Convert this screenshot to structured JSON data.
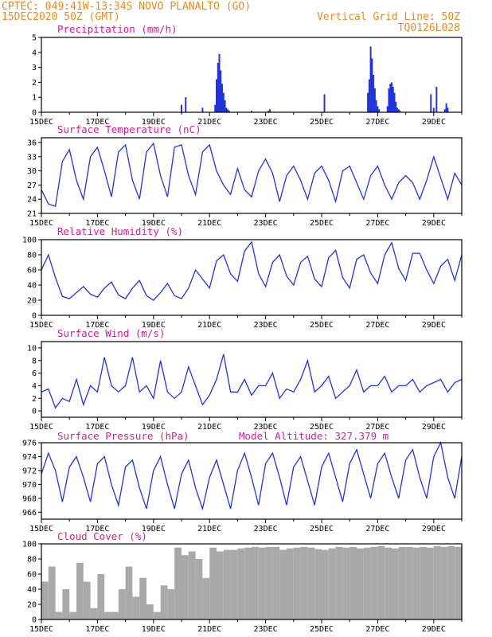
{
  "header": {
    "line1": "CPTEC:  049:41W-13:34S  NOVO PLANALTO (GO)",
    "line2": "15DEC2020 50Z (GMT)",
    "grid_note": "Vertical Grid Line: 50Z",
    "code": "TQ0126L028"
  },
  "colors": {
    "header": "#e88a1e",
    "title": "#e0198c",
    "line": "#2233dd",
    "cloud": "#a9a9a9"
  },
  "x_ticks": [
    "15DEC",
    "17DEC",
    "19DEC",
    "21DEC",
    "23DEC",
    "25DEC",
    "27DEC",
    "29DEC"
  ],
  "chart_data": [
    {
      "id": "precip",
      "type": "bar",
      "title": "Precipitation (mm/h)",
      "ylim": [
        0,
        5
      ],
      "yticks": [
        0,
        1,
        2,
        3,
        4,
        5
      ],
      "color": "#2233dd",
      "x": [
        5.0,
        5.15,
        5.75,
        6.2,
        6.25,
        6.3,
        6.35,
        6.4,
        6.45,
        6.5,
        6.55,
        6.6,
        6.65,
        6.7,
        7.5,
        8.1,
        8.15,
        10.1,
        11.65,
        11.7,
        11.75,
        11.8,
        11.85,
        11.9,
        11.95,
        12.0,
        12.05,
        12.35,
        12.4,
        12.45,
        12.5,
        12.55,
        12.6,
        12.65,
        12.7,
        12.75,
        12.8,
        13.9,
        14.0,
        14.1,
        14.4,
        14.45,
        14.5
      ],
      "values": [
        0.5,
        1.0,
        0.3,
        0.5,
        2.2,
        3.3,
        3.9,
        2.8,
        1.9,
        1.3,
        0.8,
        0.3,
        0.2,
        0.1,
        0.1,
        0.1,
        0.2,
        1.2,
        1.3,
        2.2,
        4.4,
        3.6,
        2.5,
        1.6,
        0.8,
        0.4,
        0.2,
        0.4,
        1.6,
        1.9,
        2.0,
        1.7,
        1.3,
        0.7,
        0.3,
        0.2,
        0.1,
        1.2,
        0.3,
        1.7,
        0.2,
        0.6,
        0.3
      ]
    },
    {
      "id": "temp",
      "type": "line",
      "title": "Surface Temperature (nC)",
      "ylim": [
        21,
        37
      ],
      "yticks": [
        21,
        24,
        27,
        30,
        33,
        36
      ],
      "color": "#2233dd",
      "x": [
        0.0,
        0.25,
        0.5,
        0.75,
        1.0,
        1.25,
        1.5,
        1.75,
        2.0,
        2.25,
        2.5,
        2.75,
        3.0,
        3.25,
        3.5,
        3.75,
        4.0,
        4.25,
        4.5,
        4.75,
        5.0,
        5.25,
        5.5,
        5.75,
        6.0,
        6.25,
        6.5,
        6.75,
        7.0,
        7.25,
        7.5,
        7.75,
        8.0,
        8.25,
        8.5,
        8.75,
        9.0,
        9.25,
        9.5,
        9.75,
        10.0,
        10.25,
        10.5,
        10.75,
        11.0,
        11.25,
        11.5,
        11.75,
        12.0,
        12.25,
        12.5,
        12.75,
        13.0,
        13.25,
        13.5,
        13.75,
        14.0,
        14.25,
        14.5,
        14.75,
        15.0
      ],
      "values": [
        26,
        23,
        22.5,
        32,
        34.5,
        28,
        24,
        33,
        35,
        30,
        24.5,
        34,
        35.5,
        28,
        24,
        34,
        35.8,
        29,
        24.5,
        35,
        35.5,
        29,
        25,
        34,
        35.5,
        30,
        27,
        25,
        30.5,
        26,
        24.5,
        30,
        32.5,
        29.5,
        23.5,
        29,
        31,
        28,
        24,
        29.5,
        31,
        28,
        23.5,
        30,
        31,
        27.5,
        24,
        29,
        31,
        27,
        24,
        27.5,
        29,
        27.5,
        24,
        28,
        33,
        28.5,
        24,
        29.5,
        27
      ]
    },
    {
      "id": "rh",
      "type": "line",
      "title": "Relative Humidity (%)",
      "ylim": [
        0,
        100
      ],
      "yticks": [
        0,
        20,
        40,
        60,
        80,
        100
      ],
      "color": "#2233dd",
      "x": [
        0.0,
        0.25,
        0.5,
        0.75,
        1.0,
        1.25,
        1.5,
        1.75,
        2.0,
        2.25,
        2.5,
        2.75,
        3.0,
        3.25,
        3.5,
        3.75,
        4.0,
        4.25,
        4.5,
        4.75,
        5.0,
        5.25,
        5.5,
        5.75,
        6.0,
        6.25,
        6.5,
        6.75,
        7.0,
        7.25,
        7.5,
        7.75,
        8.0,
        8.25,
        8.5,
        8.75,
        9.0,
        9.25,
        9.5,
        9.75,
        10.0,
        10.25,
        10.5,
        10.75,
        11.0,
        11.25,
        11.5,
        11.75,
        12.0,
        12.25,
        12.5,
        12.75,
        13.0,
        13.25,
        13.5,
        13.75,
        14.0,
        14.25,
        14.5,
        14.75,
        15.0
      ],
      "values": [
        60,
        80,
        50,
        25,
        22,
        30,
        38,
        28,
        24,
        36,
        44,
        27,
        22,
        36,
        46,
        26,
        20,
        30,
        42,
        26,
        22,
        36,
        60,
        48,
        36,
        72,
        80,
        55,
        45,
        85,
        97,
        55,
        38,
        70,
        80,
        52,
        40,
        70,
        78,
        48,
        38,
        76,
        86,
        50,
        36,
        74,
        80,
        56,
        42,
        80,
        96,
        62,
        46,
        82,
        82,
        60,
        42,
        65,
        74,
        46,
        80
      ]
    },
    {
      "id": "wind",
      "type": "line",
      "title": "Surface Wind (m/s)",
      "ylim": [
        -1,
        11
      ],
      "yticks": [
        0,
        2,
        4,
        6,
        8,
        10
      ],
      "color": "#2233dd",
      "x": [
        0.0,
        0.25,
        0.5,
        0.75,
        1.0,
        1.25,
        1.5,
        1.75,
        2.0,
        2.25,
        2.5,
        2.75,
        3.0,
        3.25,
        3.5,
        3.75,
        4.0,
        4.25,
        4.5,
        4.75,
        5.0,
        5.25,
        5.5,
        5.75,
        6.0,
        6.25,
        6.5,
        6.75,
        7.0,
        7.25,
        7.5,
        7.75,
        8.0,
        8.25,
        8.5,
        8.75,
        9.0,
        9.25,
        9.5,
        9.75,
        10.0,
        10.25,
        10.5,
        10.75,
        11.0,
        11.25,
        11.5,
        11.75,
        12.0,
        12.25,
        12.5,
        12.75,
        13.0,
        13.25,
        13.5,
        13.75,
        14.0,
        14.25,
        14.5,
        14.75,
        15.0
      ],
      "values": [
        3,
        3.5,
        0.5,
        2,
        1.5,
        5,
        1,
        4,
        3,
        8.5,
        4,
        3,
        4,
        8.5,
        3,
        4,
        2,
        8,
        3,
        2,
        3,
        7,
        4,
        1,
        2.5,
        5,
        9,
        3,
        3,
        5,
        2.5,
        4,
        4,
        6,
        2,
        3.5,
        3,
        5,
        8,
        3,
        4,
        5.5,
        2,
        3,
        4,
        6.5,
        3,
        4,
        4,
        5.5,
        3,
        4,
        4,
        5,
        3,
        4,
        4.5,
        5,
        3,
        4.5,
        5
      ]
    },
    {
      "id": "pres",
      "type": "line",
      "title": "Surface Pressure (hPa)",
      "annotation": "Model Altitude: 327.379 m",
      "ylim": [
        965,
        976
      ],
      "yticks": [
        966,
        968,
        970,
        972,
        974,
        976
      ],
      "color": "#2233dd",
      "x": [
        0.0,
        0.25,
        0.5,
        0.75,
        1.0,
        1.25,
        1.5,
        1.75,
        2.0,
        2.25,
        2.5,
        2.75,
        3.0,
        3.25,
        3.5,
        3.75,
        4.0,
        4.25,
        4.5,
        4.75,
        5.0,
        5.25,
        5.5,
        5.75,
        6.0,
        6.25,
        6.5,
        6.75,
        7.0,
        7.25,
        7.5,
        7.75,
        8.0,
        8.25,
        8.5,
        8.75,
        9.0,
        9.25,
        9.5,
        9.75,
        10.0,
        10.25,
        10.5,
        10.75,
        11.0,
        11.25,
        11.5,
        11.75,
        12.0,
        12.25,
        12.5,
        12.75,
        13.0,
        13.25,
        13.5,
        13.75,
        14.0,
        14.25,
        14.5,
        14.75,
        15.0
      ],
      "values": [
        971.5,
        974.5,
        972,
        967.5,
        972.5,
        974,
        971,
        967.5,
        973,
        974,
        970,
        967,
        972.5,
        973.5,
        969.5,
        966.5,
        972,
        974,
        970,
        966.5,
        971.5,
        973.5,
        969.5,
        966.5,
        971,
        973.5,
        970,
        966.5,
        972,
        974.5,
        971,
        967,
        973,
        974.5,
        971,
        967,
        972.5,
        974,
        970.5,
        967,
        972.5,
        974.5,
        971,
        967.5,
        973,
        975,
        971.5,
        968,
        973,
        974.5,
        971,
        968,
        973.5,
        975,
        971,
        968,
        974,
        976,
        971,
        968,
        974
      ]
    },
    {
      "id": "cloud",
      "type": "area",
      "title": "Cloud Cover (%)",
      "ylim": [
        0,
        100
      ],
      "yticks": [
        0,
        20,
        40,
        60,
        80,
        100
      ],
      "color": "#a9a9a9",
      "x": [
        0.0,
        0.25,
        0.5,
        0.75,
        1.0,
        1.25,
        1.5,
        1.75,
        2.0,
        2.25,
        2.5,
        2.75,
        3.0,
        3.25,
        3.5,
        3.75,
        4.0,
        4.25,
        4.5,
        4.75,
        5.0,
        5.25,
        5.5,
        5.75,
        6.0,
        6.25,
        6.5,
        6.75,
        7.0,
        7.25,
        7.5,
        7.75,
        8.0,
        8.25,
        8.5,
        8.75,
        9.0,
        9.25,
        9.5,
        9.75,
        10.0,
        10.25,
        10.5,
        10.75,
        11.0,
        11.25,
        11.5,
        11.75,
        12.0,
        12.25,
        12.5,
        12.75,
        13.0,
        13.25,
        13.5,
        13.75,
        14.0,
        14.25,
        14.5,
        14.75,
        15.0
      ],
      "values": [
        50,
        70,
        10,
        40,
        10,
        75,
        50,
        15,
        60,
        10,
        10,
        40,
        70,
        30,
        55,
        20,
        10,
        45,
        40,
        95,
        85,
        90,
        80,
        55,
        95,
        90,
        92,
        92,
        94,
        95,
        96,
        95,
        96,
        96,
        92,
        94,
        95,
        96,
        95,
        93,
        92,
        94,
        96,
        95,
        96,
        94,
        95,
        96,
        97,
        95,
        94,
        96,
        96,
        95,
        96,
        95,
        97,
        96,
        97,
        96,
        98
      ]
    }
  ]
}
